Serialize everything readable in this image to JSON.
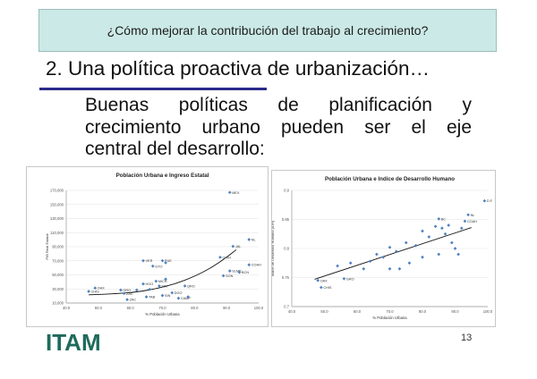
{
  "header": {
    "banner": "¿Cómo mejorar la contribución del trabajo al crecimiento?"
  },
  "slide": {
    "title": "2. Una política proactiva de urbanización…",
    "body_lines": [
      "Buenas políticas de planificación y",
      "crecimiento urbano pueden ser el eje",
      "central del desarrollo:"
    ],
    "page_number": "13"
  },
  "logo": {
    "text": "ITAM",
    "color": "#1f6b5c"
  },
  "chart_data": [
    {
      "type": "scatter",
      "title": "Población Urbana e Ingreso Estatal",
      "xlabel": "% Población Urbana",
      "ylabel": "PIB Real Estatal",
      "xlim": [
        40,
        100
      ],
      "ylim": [
        10000,
        175000
      ],
      "x_ticks": [
        "40.0",
        "50.0",
        "60.0",
        "70.0",
        "80.0",
        "90.0",
        "100.0"
      ],
      "y_ticks": [
        "10,000",
        "30,000",
        "50,000",
        "70,000",
        "90,000",
        "110,000",
        "130,000",
        "150,000",
        "170,000"
      ],
      "trendline": "polynomial",
      "trend_points": [
        [
          47,
          22000
        ],
        [
          55,
          23500
        ],
        [
          62,
          26000
        ],
        [
          68,
          31000
        ],
        [
          74,
          38000
        ],
        [
          80,
          49000
        ],
        [
          85,
          61000
        ],
        [
          90,
          77000
        ],
        [
          93,
          88000
        ]
      ],
      "marker_color": "#4f81bd",
      "points": [
        {
          "x": 91,
          "y": 172000,
          "label": "MEX"
        },
        {
          "x": 97,
          "y": 103000,
          "label": "NL"
        },
        {
          "x": 92,
          "y": 93000,
          "label": "JAL"
        },
        {
          "x": 88,
          "y": 77000,
          "label": "CHIH"
        },
        {
          "x": 64,
          "y": 72000,
          "label": "VER"
        },
        {
          "x": 70,
          "y": 72000,
          "label": "PUE"
        },
        {
          "x": 71,
          "y": 69000,
          "label": ""
        },
        {
          "x": 67,
          "y": 64000,
          "label": "GTO"
        },
        {
          "x": 97,
          "y": 66000,
          "label": "COAH"
        },
        {
          "x": 91,
          "y": 57000,
          "label": "SLMP"
        },
        {
          "x": 94,
          "y": 55000,
          "label": "BCN"
        },
        {
          "x": 89,
          "y": 50000,
          "label": "SON"
        },
        {
          "x": 68,
          "y": 42000,
          "label": "MICH"
        },
        {
          "x": 64,
          "y": 38000,
          "label": "HGO"
        },
        {
          "x": 69,
          "y": 35000,
          "label": "SIN"
        },
        {
          "x": 77,
          "y": 35000,
          "label": "QRO"
        },
        {
          "x": 49,
          "y": 32000,
          "label": "OAX"
        },
        {
          "x": 47,
          "y": 27000,
          "label": "CHIS"
        },
        {
          "x": 57,
          "y": 29000,
          "label": "GRO"
        },
        {
          "x": 58,
          "y": 24000,
          "label": "ZAC"
        },
        {
          "x": 59,
          "y": 15000,
          "label": "ZAC"
        },
        {
          "x": 65,
          "y": 19000,
          "label": "TAB"
        },
        {
          "x": 70,
          "y": 21000,
          "label": "SIN"
        },
        {
          "x": 73,
          "y": 25000,
          "label": "DGO"
        },
        {
          "x": 75,
          "y": 17000,
          "label": "CAMP"
        },
        {
          "x": 66,
          "y": 30000,
          "label": ""
        },
        {
          "x": 62,
          "y": 29000,
          "label": ""
        },
        {
          "x": 71,
          "y": 45000,
          "label": ""
        },
        {
          "x": 78,
          "y": 19000,
          "label": ""
        }
      ]
    },
    {
      "type": "scatter",
      "title": "Población Urbana e Indice de Desarrollo Humano",
      "xlabel": "% Población Urbana",
      "ylabel": "Índice de Desarrollo Humano (IDH)",
      "xlim": [
        40,
        100
      ],
      "ylim": [
        0.7,
        0.9
      ],
      "x_ticks": [
        "40.0",
        "50.0",
        "60.0",
        "70.0",
        "80.0",
        "90.0",
        "100.0"
      ],
      "y_ticks": [
        "0.7",
        "0.75",
        "0.8",
        "0.85",
        "0.9"
      ],
      "trendline": "linear",
      "trend_points": [
        [
          47,
          0.747
        ],
        [
          95,
          0.836
        ]
      ],
      "marker_color": "#4f81bd",
      "points": [
        {
          "x": 99,
          "y": 0.882,
          "label": "D.F."
        },
        {
          "x": 94,
          "y": 0.858,
          "label": "NL"
        },
        {
          "x": 85,
          "y": 0.851,
          "label": "BC"
        },
        {
          "x": 93,
          "y": 0.847,
          "label": "COAH"
        },
        {
          "x": 48,
          "y": 0.745,
          "label": "OAX"
        },
        {
          "x": 49,
          "y": 0.733,
          "label": "CHIS"
        },
        {
          "x": 56,
          "y": 0.748,
          "label": "GRO"
        },
        {
          "x": 54,
          "y": 0.77,
          "label": ""
        },
        {
          "x": 58,
          "y": 0.775,
          "label": ""
        },
        {
          "x": 64,
          "y": 0.778,
          "label": ""
        },
        {
          "x": 66,
          "y": 0.79,
          "label": ""
        },
        {
          "x": 68,
          "y": 0.785,
          "label": ""
        },
        {
          "x": 70,
          "y": 0.802,
          "label": ""
        },
        {
          "x": 72,
          "y": 0.795,
          "label": ""
        },
        {
          "x": 75,
          "y": 0.81,
          "label": ""
        },
        {
          "x": 76,
          "y": 0.775,
          "label": ""
        },
        {
          "x": 78,
          "y": 0.805,
          "label": ""
        },
        {
          "x": 80,
          "y": 0.83,
          "label": ""
        },
        {
          "x": 82,
          "y": 0.82,
          "label": ""
        },
        {
          "x": 84,
          "y": 0.838,
          "label": ""
        },
        {
          "x": 86,
          "y": 0.835,
          "label": ""
        },
        {
          "x": 87,
          "y": 0.825,
          "label": ""
        },
        {
          "x": 88,
          "y": 0.84,
          "label": ""
        },
        {
          "x": 89,
          "y": 0.81,
          "label": ""
        },
        {
          "x": 90,
          "y": 0.8,
          "label": ""
        },
        {
          "x": 91,
          "y": 0.79,
          "label": ""
        },
        {
          "x": 92,
          "y": 0.835,
          "label": ""
        },
        {
          "x": 70,
          "y": 0.765,
          "label": ""
        },
        {
          "x": 73,
          "y": 0.765,
          "label": ""
        },
        {
          "x": 62,
          "y": 0.765,
          "label": ""
        },
        {
          "x": 85,
          "y": 0.79,
          "label": ""
        },
        {
          "x": 80,
          "y": 0.785,
          "label": ""
        }
      ]
    }
  ]
}
